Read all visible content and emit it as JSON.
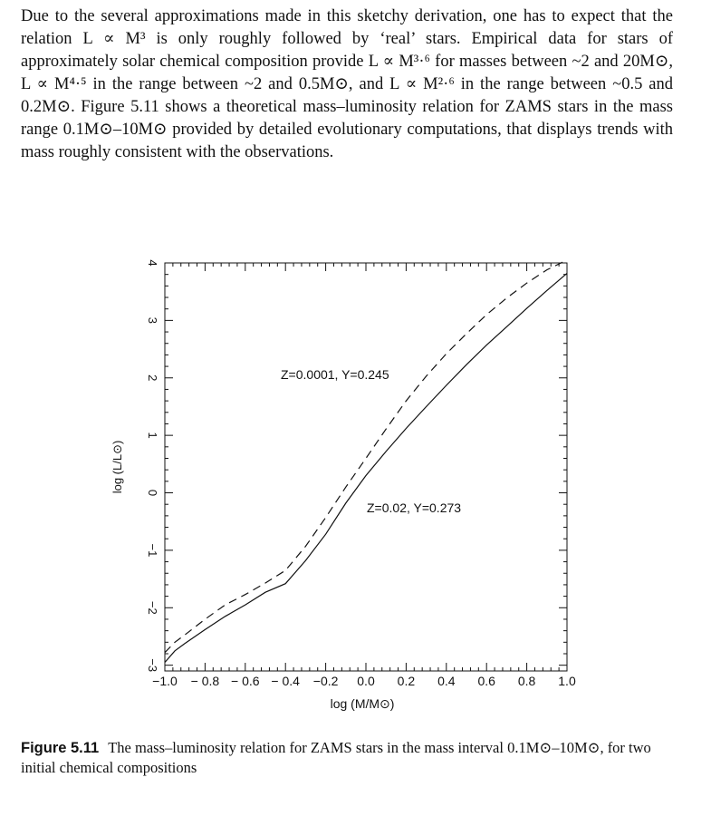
{
  "text": {
    "paragraph": "Due to the several approximations made in this sketchy derivation, one has to expect that the relation L ∝ M³ is only roughly followed by ‘real’ stars. Empirical data for stars of approximately solar chemical composition provide L ∝ M³·⁶ for masses between ~2 and 20M⊙, L ∝ M⁴·⁵ in the range between ~2 and 0.5M⊙, and L ∝ M²·⁶ in the range between ~0.5 and 0.2M⊙. Figure 5.11 shows a theoretical mass–luminosity relation for ZAMS stars in the mass range 0.1M⊙–10M⊙ provided by detailed evolutionary computations, that displays trends with mass roughly consistent with the observations."
  },
  "figure": {
    "caption_label": "Figure 5.11",
    "caption_text": "The mass–luminosity relation for ZAMS stars in the mass interval 0.1M⊙–10M⊙, for two initial chemical compositions"
  },
  "chart_data": {
    "type": "line",
    "xlabel": "log (M/M⊙)",
    "ylabel": "log (L/L⊙)",
    "xlim": [
      -1.0,
      1.0
    ],
    "ylim": [
      -3.1,
      4.0
    ],
    "x_ticks": [
      "−1.0",
      "− 0.8",
      "− 0.6",
      "− 0.4",
      "−0.2",
      "0.0",
      "0.2",
      "0.4",
      "0.6",
      "0.8",
      "1.0"
    ],
    "y_ticks": [
      "−3",
      "−2",
      "−1",
      "0",
      "1",
      "2",
      "3",
      "4"
    ],
    "series": [
      {
        "name": "Z=0.02, Y=0.273",
        "style": "solid",
        "x": [
          -1.0,
          -0.95,
          -0.9,
          -0.8,
          -0.7,
          -0.6,
          -0.5,
          -0.4,
          -0.3,
          -0.2,
          -0.1,
          0.0,
          0.1,
          0.2,
          0.3,
          0.4,
          0.5,
          0.6,
          0.7,
          0.8,
          0.9,
          1.0
        ],
        "y": [
          -2.95,
          -2.75,
          -2.62,
          -2.38,
          -2.15,
          -1.95,
          -1.73,
          -1.58,
          -1.18,
          -0.72,
          -0.18,
          0.3,
          0.72,
          1.12,
          1.5,
          1.87,
          2.23,
          2.57,
          2.89,
          3.21,
          3.52,
          3.82
        ]
      },
      {
        "name": "Z=0.0001, Y=0.245",
        "style": "dashed",
        "x": [
          -1.0,
          -0.95,
          -0.9,
          -0.8,
          -0.7,
          -0.6,
          -0.5,
          -0.4,
          -0.3,
          -0.2,
          -0.1,
          0.0,
          0.1,
          0.2,
          0.3,
          0.4,
          0.5,
          0.6,
          0.7,
          0.8,
          0.9,
          1.0
        ],
        "y": [
          -2.78,
          -2.6,
          -2.47,
          -2.2,
          -1.95,
          -1.77,
          -1.57,
          -1.35,
          -0.93,
          -0.43,
          0.1,
          0.6,
          1.11,
          1.6,
          2.03,
          2.42,
          2.77,
          3.1,
          3.39,
          3.65,
          3.88,
          4.05
        ]
      }
    ],
    "annotations": [
      "Z=0.0001, Y=0.245",
      "Z=0.02, Y=0.273"
    ],
    "grid": false
  }
}
